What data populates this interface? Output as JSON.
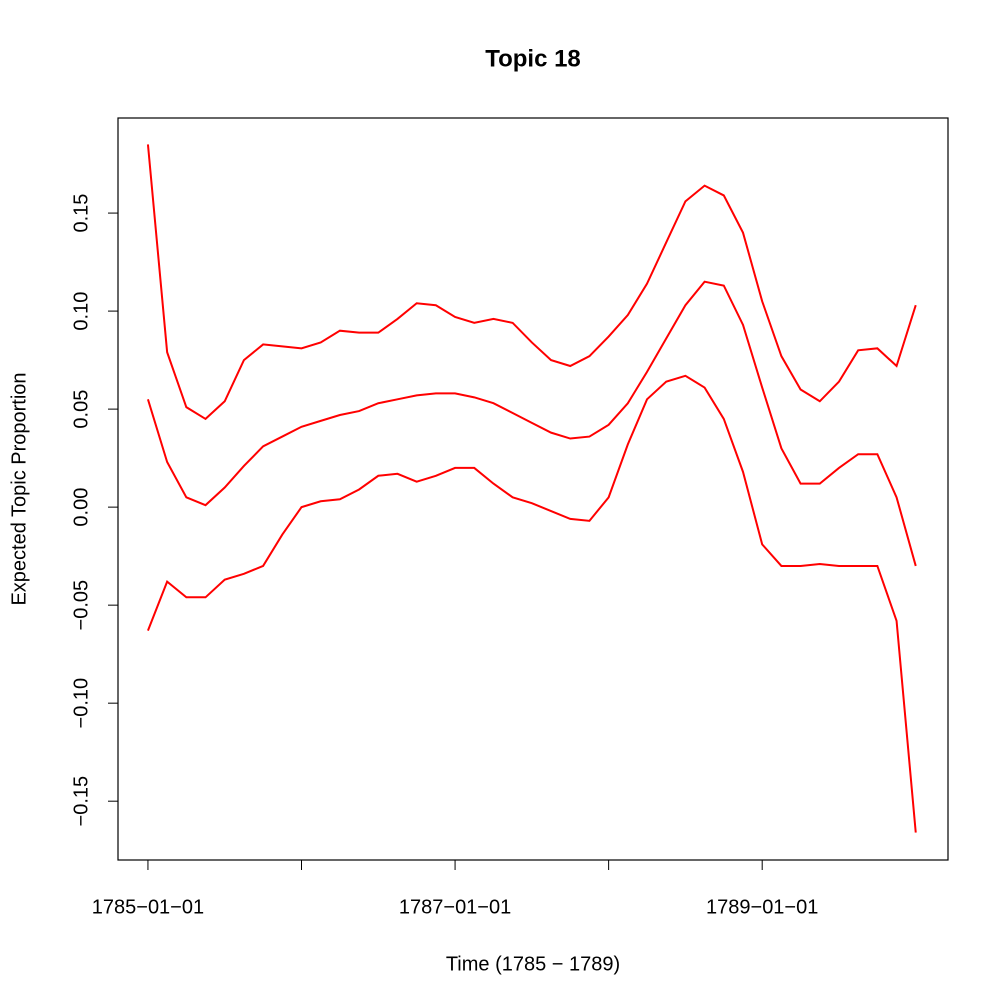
{
  "chart_data": {
    "type": "line",
    "title": "Topic 18",
    "xlabel": "Time (1785 − 1789)",
    "ylabel": "Expected Topic Proportion",
    "x": [
      1785,
      1785.125,
      1785.25,
      1785.375,
      1785.5,
      1785.625,
      1785.75,
      1785.875,
      1786,
      1786.125,
      1786.25,
      1786.375,
      1786.5,
      1786.625,
      1786.75,
      1786.875,
      1787,
      1787.125,
      1787.25,
      1787.375,
      1787.5,
      1787.625,
      1787.75,
      1787.875,
      1788,
      1788.125,
      1788.25,
      1788.375,
      1788.5,
      1788.625,
      1788.75,
      1788.875,
      1789,
      1789.125,
      1789.25,
      1789.375,
      1789.5,
      1789.625,
      1789.75,
      1789.875,
      1790
    ],
    "series": [
      {
        "color": "#ff0000",
        "values": [
          0.185,
          0.079,
          0.051,
          0.045,
          0.054,
          0.075,
          0.083,
          0.082,
          0.081,
          0.084,
          0.09,
          0.089,
          0.089,
          0.096,
          0.104,
          0.103,
          0.097,
          0.094,
          0.096,
          0.094,
          0.084,
          0.075,
          0.072,
          0.077,
          0.087,
          0.098,
          0.114,
          0.135,
          0.156,
          0.164,
          0.159,
          0.14,
          0.105,
          0.077,
          0.06,
          0.054,
          0.064,
          0.08,
          0.081,
          0.072,
          0.103
        ]
      },
      {
        "color": "#ff0000",
        "values": [
          0.055,
          0.023,
          0.005,
          0.001,
          0.01,
          0.021,
          0.031,
          0.036,
          0.041,
          0.044,
          0.047,
          0.049,
          0.053,
          0.055,
          0.057,
          0.058,
          0.058,
          0.056,
          0.053,
          0.048,
          0.043,
          0.038,
          0.035,
          0.036,
          0.042,
          0.053,
          0.069,
          0.086,
          0.103,
          0.115,
          0.113,
          0.093,
          0.061,
          0.03,
          0.012,
          0.012,
          0.02,
          0.027,
          0.027,
          0.005,
          -0.03
        ]
      },
      {
        "color": "#ff0000",
        "values": [
          -0.063,
          -0.038,
          -0.046,
          -0.046,
          -0.037,
          -0.034,
          -0.03,
          -0.014,
          0.0,
          0.003,
          0.004,
          0.009,
          0.016,
          0.017,
          0.013,
          0.016,
          0.02,
          0.02,
          0.012,
          0.005,
          0.002,
          -0.002,
          -0.006,
          -0.007,
          0.005,
          0.032,
          0.055,
          0.064,
          0.067,
          0.061,
          0.045,
          0.018,
          -0.019,
          -0.03,
          -0.03,
          -0.029,
          -0.03,
          -0.03,
          -0.03,
          -0.058,
          -0.166
        ]
      }
    ],
    "xlim": [
      1784.805,
      1790.21
    ],
    "xticks": [
      {
        "value": 1785,
        "label": "1785−01−01"
      },
      {
        "value": 1786,
        "label": null
      },
      {
        "value": 1787,
        "label": "1787−01−01"
      },
      {
        "value": 1788,
        "label": null
      },
      {
        "value": 1789,
        "label": "1789−01−01"
      }
    ],
    "ylim": [
      -0.18,
      0.1985
    ],
    "yticks": [
      {
        "value": -0.15,
        "label": "−0.15"
      },
      {
        "value": -0.1,
        "label": "−0.10"
      },
      {
        "value": -0.05,
        "label": "−0.05"
      },
      {
        "value": 0,
        "label": "0.00"
      },
      0.05,
      {
        "value": 0.1,
        "label": "0.10"
      },
      0.15
    ],
    "grid": false
  }
}
